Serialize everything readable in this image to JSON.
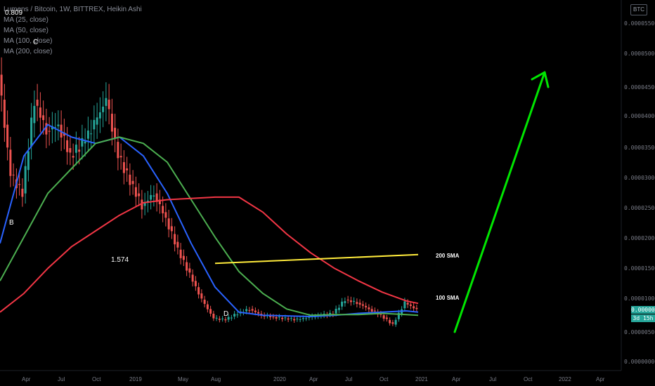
{
  "header": {
    "symbol_line": "Lumens / Bitcoin, 1W, BITTREX, Heikin Ashi",
    "indicators": [
      "MA (25, close)",
      "MA (50, close)",
      "MA (100, close)",
      "MA (200, close)"
    ],
    "currency_button": "BTC"
  },
  "price_axis": {
    "labels": [
      "0.00005500",
      "0.00005000",
      "0.00004500",
      "0.00004000",
      "0.00003500",
      "0.00003000",
      "0.00002500",
      "0.00002000",
      "0.00001500",
      "0.00001000",
      "0.00000500",
      "0.00000000"
    ],
    "current_price": "0.00000836",
    "countdown": "3d 15h"
  },
  "time_axis": {
    "labels": [
      "Apr",
      "Jul",
      "Oct",
      "2019",
      "May",
      "Aug",
      "2020",
      "Apr",
      "Jul",
      "Oct",
      "2021",
      "Apr",
      "Jul",
      "Oct",
      "2022",
      "Apr"
    ]
  },
  "annotations": {
    "fib_top": "0.809",
    "wave_b": "B",
    "wave_c": "C",
    "wave_d": "D",
    "fib_mid": "1.574",
    "sma_200": "200 SMA",
    "sma_100": "100 SMA"
  },
  "colors": {
    "up_candle": "#26a69a",
    "down_candle": "#ef5350",
    "ma25": "#2962ff",
    "ma50": "#4caf50",
    "ma100": "#f23645",
    "ma200_drawn": "#ffeb3b",
    "arrow": "#00e600"
  },
  "chart_data": {
    "type": "candlestick",
    "title": "Lumens / Bitcoin, 1W, BITTREX, Heikin Ashi",
    "ylim": [
      0,
      5.75e-05
    ],
    "x_range": [
      "2018-02",
      "2022-06"
    ],
    "price_series": [
      {
        "date": "2018-02",
        "close": 4.6e-05
      },
      {
        "date": "2018-03",
        "close": 3e-05
      },
      {
        "date": "2018-04",
        "close": 2.7e-05
      },
      {
        "date": "2018-05",
        "close": 4.2e-05
      },
      {
        "date": "2018-06",
        "close": 3.7e-05
      },
      {
        "date": "2018-07",
        "close": 3.8e-05
      },
      {
        "date": "2018-08",
        "close": 3.3e-05
      },
      {
        "date": "2018-09",
        "close": 3.5e-05
      },
      {
        "date": "2018-10",
        "close": 3.8e-05
      },
      {
        "date": "2018-11",
        "close": 4.2e-05
      },
      {
        "date": "2018-12",
        "close": 3.3e-05
      },
      {
        "date": "2019-01",
        "close": 2.9e-05
      },
      {
        "date": "2019-02",
        "close": 2.5e-05
      },
      {
        "date": "2019-03",
        "close": 2.7e-05
      },
      {
        "date": "2019-04",
        "close": 2.3e-05
      },
      {
        "date": "2019-05",
        "close": 1.8e-05
      },
      {
        "date": "2019-06",
        "close": 1.4e-05
      },
      {
        "date": "2019-07",
        "close": 1e-05
      },
      {
        "date": "2019-08",
        "close": 7e-06
      },
      {
        "date": "2019-09",
        "close": 6.8e-06
      },
      {
        "date": "2019-10",
        "close": 7.8e-06
      },
      {
        "date": "2019-11",
        "close": 8.5e-06
      },
      {
        "date": "2019-12",
        "close": 7.5e-06
      },
      {
        "date": "2020-01",
        "close": 7.2e-06
      },
      {
        "date": "2020-02",
        "close": 7e-06
      },
      {
        "date": "2020-03",
        "close": 6.8e-06
      },
      {
        "date": "2020-04",
        "close": 7.2e-06
      },
      {
        "date": "2020-05",
        "close": 7.5e-06
      },
      {
        "date": "2020-06",
        "close": 7.8e-06
      },
      {
        "date": "2020-07",
        "close": 1e-05
      },
      {
        "date": "2020-08",
        "close": 9.5e-06
      },
      {
        "date": "2020-09",
        "close": 8.5e-06
      },
      {
        "date": "2020-10",
        "close": 7.5e-06
      },
      {
        "date": "2020-11",
        "close": 6e-06
      },
      {
        "date": "2020-12",
        "close": 9.5e-06
      },
      {
        "date": "2021-01",
        "close": 8.4e-06
      }
    ],
    "series": [
      {
        "name": "MA (25, close)",
        "points": [
          [
            "2018-02",
            1.9e-05
          ],
          [
            "2018-04",
            3.3e-05
          ],
          [
            "2018-06",
            3.8e-05
          ],
          [
            "2018-08",
            3.6e-05
          ],
          [
            "2018-10",
            3.5e-05
          ],
          [
            "2018-12",
            3.6e-05
          ],
          [
            "2019-02",
            3.3e-05
          ],
          [
            "2019-04",
            2.7e-05
          ],
          [
            "2019-06",
            1.9e-05
          ],
          [
            "2019-08",
            1.2e-05
          ],
          [
            "2019-10",
            8e-06
          ],
          [
            "2019-12",
            7.5e-06
          ],
          [
            "2020-02",
            7.4e-06
          ],
          [
            "2020-04",
            7.3e-06
          ],
          [
            "2020-06",
            7.5e-06
          ],
          [
            "2020-08",
            7.8e-06
          ],
          [
            "2020-10",
            8e-06
          ],
          [
            "2020-12",
            8.2e-06
          ],
          [
            "2021-01",
            8e-06
          ]
        ]
      },
      {
        "name": "MA (50, close)",
        "points": [
          [
            "2018-02",
            1.3e-05
          ],
          [
            "2018-04",
            2e-05
          ],
          [
            "2018-06",
            2.7e-05
          ],
          [
            "2018-08",
            3.1e-05
          ],
          [
            "2018-10",
            3.5e-05
          ],
          [
            "2018-12",
            3.6e-05
          ],
          [
            "2019-02",
            3.5e-05
          ],
          [
            "2019-04",
            3.2e-05
          ],
          [
            "2019-06",
            2.6e-05
          ],
          [
            "2019-08",
            2e-05
          ],
          [
            "2019-10",
            1.45e-05
          ],
          [
            "2019-12",
            1.1e-05
          ],
          [
            "2020-02",
            8.5e-06
          ],
          [
            "2020-04",
            7.5e-06
          ],
          [
            "2020-06",
            7.6e-06
          ],
          [
            "2020-08",
            7.6e-06
          ],
          [
            "2020-10",
            7.8e-06
          ],
          [
            "2020-12",
            7.6e-06
          ],
          [
            "2021-01",
            7.5e-06
          ]
        ]
      },
      {
        "name": "MA (100, close)",
        "points": [
          [
            "2018-02",
            8e-06
          ],
          [
            "2018-04",
            1.1e-05
          ],
          [
            "2018-06",
            1.5e-05
          ],
          [
            "2018-08",
            1.85e-05
          ],
          [
            "2018-10",
            2.1e-05
          ],
          [
            "2018-12",
            2.35e-05
          ],
          [
            "2019-02",
            2.55e-05
          ],
          [
            "2019-04",
            2.6e-05
          ],
          [
            "2019-06",
            2.62e-05
          ],
          [
            "2019-08",
            2.64e-05
          ],
          [
            "2019-10",
            2.64e-05
          ],
          [
            "2019-12",
            2.4e-05
          ],
          [
            "2020-02",
            2.05e-05
          ],
          [
            "2020-04",
            1.75e-05
          ],
          [
            "2020-06",
            1.5e-05
          ],
          [
            "2020-08",
            1.3e-05
          ],
          [
            "2020-10",
            1.12e-05
          ],
          [
            "2020-12",
            9.8e-06
          ],
          [
            "2021-01",
            9.4e-06
          ]
        ]
      },
      {
        "name": "200 SMA",
        "points": [
          [
            "2019-08",
            1.58e-05
          ],
          [
            "2021-01",
            1.72e-05
          ]
        ]
      }
    ]
  }
}
